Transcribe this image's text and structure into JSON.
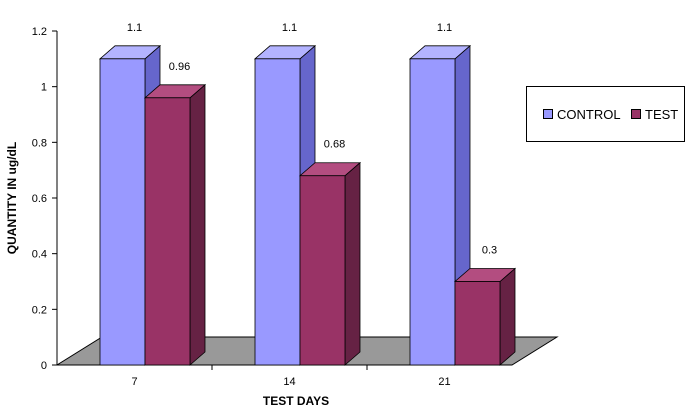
{
  "chart_data": {
    "type": "bar",
    "categories": [
      "7",
      "14",
      "21"
    ],
    "series": [
      {
        "name": "CONTROL",
        "values": [
          1.1,
          1.1,
          1.1
        ],
        "color": "#9999ff"
      },
      {
        "name": "TEST",
        "values": [
          0.96,
          0.68,
          0.3
        ],
        "color": "#993366"
      }
    ],
    "data_labels": [
      [
        "1.1",
        "1.1",
        "1.1"
      ],
      [
        "0.96",
        "0.68",
        "0.3"
      ]
    ],
    "xlabel": "TEST DAYS",
    "ylabel": "QUANTITY IN ug/dL",
    "ylim": [
      0,
      1.2
    ],
    "yticks": [
      "0",
      "0.2",
      "0.4",
      "0.6",
      "0.8",
      "1",
      "1.2"
    ],
    "grid": false,
    "legend_position": "right",
    "style": "3d-clustered-column"
  }
}
